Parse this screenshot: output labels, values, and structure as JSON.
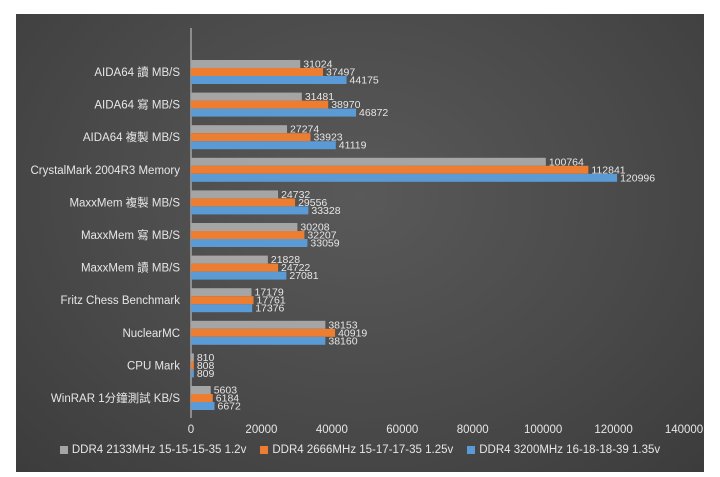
{
  "chart_data": {
    "type": "bar",
    "orientation": "horizontal",
    "title": "",
    "xlabel": "",
    "ylabel": "",
    "xlim": [
      0,
      140000
    ],
    "x_ticks": [
      "0",
      "20000",
      "40000",
      "60000",
      "80000",
      "100000",
      "120000",
      "140000"
    ],
    "grid": false,
    "legend_position": "bottom",
    "categories": [
      "AIDA64 讀 MB/S",
      "AIDA64 寫 MB/S",
      "AIDA64 複製 MB/S",
      "CrystalMark 2004R3 Memory",
      "MaxxMem 複製 MB/S",
      "MaxxMem 寫 MB/S",
      "MaxxMem 讀 MB/S",
      "Fritz Chess Benchmark",
      "NuclearMC",
      "CPU Mark",
      "WinRAR 1分鐘測試 KB/S"
    ],
    "series": [
      {
        "name": "DDR4 2133MHz 15-15-15-35 1.2v",
        "color": "#a5a5a5",
        "values": [
          31024,
          31481,
          27274,
          100764,
          24732,
          30208,
          21828,
          17179,
          38153,
          810,
          5603
        ]
      },
      {
        "name": "DDR4 2666MHz 15-17-17-35 1.25v",
        "color": "#ed7d31",
        "values": [
          37497,
          38970,
          33923,
          112841,
          29556,
          32207,
          24722,
          17761,
          40919,
          808,
          6184
        ]
      },
      {
        "name": "DDR4 3200MHz 16-18-18-39 1.35v",
        "color": "#5b9bd5",
        "values": [
          44175,
          46872,
          41119,
          120996,
          33328,
          33059,
          27081,
          17376,
          38160,
          809,
          6672
        ]
      }
    ]
  }
}
